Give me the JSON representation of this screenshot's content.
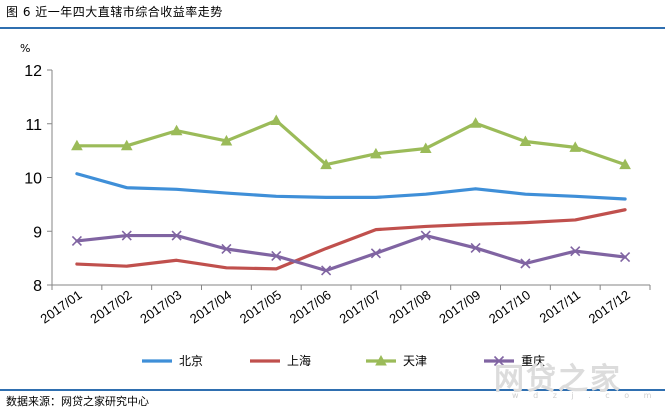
{
  "figure": {
    "title": "图 6   近一年四大直辖市综合收益率走势",
    "source": "数据来源：网贷之家研究中心",
    "watermark": "网贷之家",
    "watermark_url": "w d z j . c o m"
  },
  "colors": {
    "北京": "#3f8fd8",
    "上海": "#c0504d",
    "天津": "#9bbb59",
    "重庆": "#8064a2",
    "rule": "#2f6fb0"
  },
  "chart_data": {
    "type": "line",
    "ylabel": "%",
    "xlabel": "",
    "ylim": [
      8,
      12
    ],
    "yticks": [
      8,
      9,
      10,
      11,
      12
    ],
    "grid": false,
    "legend_position": "bottom",
    "categories": [
      "2017/01",
      "2017/02",
      "2017/03",
      "2017/04",
      "2017/05",
      "2017/06",
      "2017/07",
      "2017/08",
      "2017/09",
      "2017/10",
      "2017/11",
      "2017/12"
    ],
    "series": [
      {
        "name": "北京",
        "marker": "none",
        "values": [
          10.07,
          9.81,
          9.78,
          9.71,
          9.65,
          9.63,
          9.63,
          9.69,
          9.79,
          9.69,
          9.65,
          9.6
        ]
      },
      {
        "name": "上海",
        "marker": "none",
        "values": [
          8.39,
          8.35,
          8.46,
          8.32,
          8.3,
          8.68,
          9.03,
          9.09,
          9.13,
          9.16,
          9.21,
          9.4
        ]
      },
      {
        "name": "天津",
        "marker": "triangle",
        "values": [
          10.59,
          10.59,
          10.87,
          10.68,
          11.06,
          10.24,
          10.44,
          10.54,
          11.01,
          10.67,
          10.56,
          10.24
        ]
      },
      {
        "name": "重庆",
        "marker": "x",
        "values": [
          8.82,
          8.92,
          8.92,
          8.67,
          8.54,
          8.27,
          8.59,
          8.92,
          8.69,
          8.4,
          8.63,
          8.52
        ]
      }
    ]
  }
}
